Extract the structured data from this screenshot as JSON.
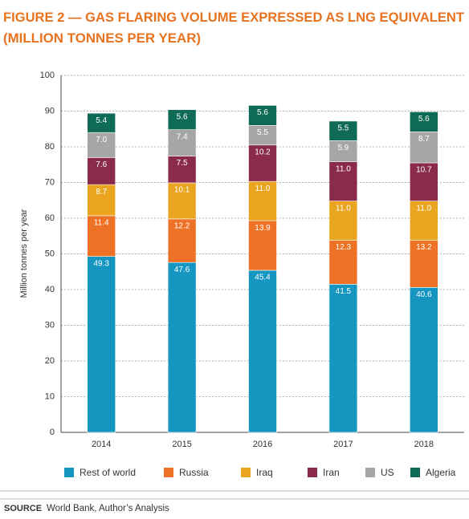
{
  "chart_data": {
    "type": "stacked_bar",
    "title": [
      "FIGURE 2 — GAS FLARING VOLUME EXPRESSED AS LNG EQUIVALENT",
      "(MILLION TONNES PER YEAR)"
    ],
    "y_label": "Million tonnes per year",
    "categories": [
      "2014",
      "2015",
      "2016",
      "2017",
      "2018"
    ],
    "series": [
      {
        "name": "Rest of world",
        "color": "#1496c1",
        "values": [
          49.3,
          47.6,
          45.4,
          41.5,
          40.6
        ],
        "value_labels": [
          "49.3",
          "47.6",
          "45.4",
          "41.5",
          "40.6"
        ]
      },
      {
        "name": "Russia",
        "color": "#ee7226",
        "values": [
          11.4,
          12.2,
          13.9,
          12.3,
          13.2
        ],
        "value_labels": [
          "11.4",
          "12.2",
          "13.9",
          "12.3",
          "13.2"
        ]
      },
      {
        "name": "Iraq",
        "color": "#e9a51f",
        "values": [
          8.7,
          10.1,
          11.0,
          11.0,
          11.0
        ],
        "value_labels": [
          "8.7",
          "10.1",
          "11.0",
          "11.0",
          "11.0"
        ]
      },
      {
        "name": "Iran",
        "color": "#8b2b4c",
        "values": [
          7.6,
          7.5,
          10.2,
          11.0,
          10.7
        ],
        "value_labels": [
          "7.6",
          "7.5",
          "10.2",
          "11.0",
          "10.7"
        ]
      },
      {
        "name": "US",
        "color": "#a6a6a6",
        "values": [
          7.0,
          7.4,
          5.5,
          5.9,
          8.7
        ],
        "value_labels": [
          "7.0",
          "7.4",
          "5.5",
          "5.9",
          "8.7"
        ]
      },
      {
        "name": "Algeria",
        "color": "#0f6b56",
        "values": [
          5.4,
          5.6,
          5.6,
          5.5,
          5.6
        ],
        "value_labels": [
          "5.4",
          "5.6",
          "5.6",
          "5.5",
          "5.6"
        ]
      }
    ],
    "ylim": [
      0,
      100
    ],
    "yticks": [
      0,
      10,
      20,
      30,
      40,
      50,
      60,
      70,
      80,
      90,
      100
    ],
    "grid": true,
    "source_label": "SOURCE",
    "source_text": "World Bank, Author’s Analysis"
  }
}
